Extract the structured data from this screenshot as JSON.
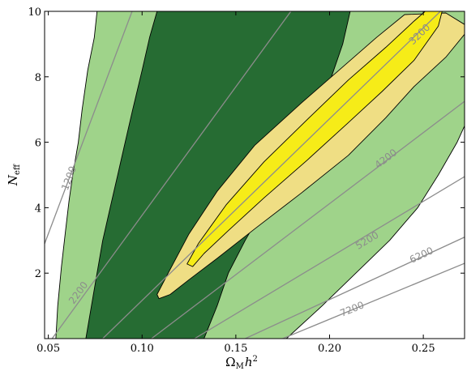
{
  "chart_data": {
    "type": "contour",
    "x_axis": {
      "label_main": "Ω",
      "label_sub": "M",
      "label_tail": "h",
      "label_sup": "2",
      "range": [
        0.048,
        0.272
      ],
      "ticks": [
        {
          "value": 0.05,
          "label": "0.05"
        },
        {
          "value": 0.1,
          "label": "0.10"
        },
        {
          "value": 0.15,
          "label": "0.15"
        },
        {
          "value": 0.2,
          "label": "0.20"
        },
        {
          "value": 0.25,
          "label": "0.25"
        }
      ]
    },
    "y_axis": {
      "label_main": "N",
      "label_sub": "eff",
      "range": [
        0,
        10
      ],
      "ticks": [
        {
          "value": 2,
          "label": "2"
        },
        {
          "value": 4,
          "label": "4"
        },
        {
          "value": 6,
          "label": "6"
        },
        {
          "value": 8,
          "label": "8"
        },
        {
          "value": 10,
          "label": "10"
        }
      ]
    },
    "colors": {
      "light_green": "#9fd38a",
      "dark_green": "#266c33",
      "light_yellow": "#efde84",
      "bright_yellow": "#f6ec18",
      "contour_line": "#8c8c8c",
      "outline": "#000000"
    },
    "regions": [
      {
        "name": "light-green-band",
        "color_key": "light_green",
        "points": [
          [
            0.076,
            10
          ],
          [
            0.0745,
            9.2
          ],
          [
            0.071,
            8.2
          ],
          [
            0.068,
            7
          ],
          [
            0.066,
            6
          ],
          [
            0.063,
            5
          ],
          [
            0.061,
            4.2
          ],
          [
            0.059,
            3.2
          ],
          [
            0.057,
            2.2
          ],
          [
            0.055,
            1
          ],
          [
            0.054,
            0
          ],
          [
            0.177,
            0
          ],
          [
            0.196,
            1
          ],
          [
            0.214,
            2
          ],
          [
            0.232,
            3
          ],
          [
            0.247,
            4
          ],
          [
            0.258,
            5
          ],
          [
            0.268,
            6
          ],
          [
            0.272,
            6.5
          ],
          [
            0.272,
            10
          ]
        ]
      },
      {
        "name": "dark-green-band",
        "color_key": "dark_green",
        "points": [
          [
            0.108,
            10
          ],
          [
            0.104,
            9.2
          ],
          [
            0.1,
            8.2
          ],
          [
            0.095,
            7
          ],
          [
            0.091,
            6
          ],
          [
            0.087,
            5
          ],
          [
            0.083,
            4
          ],
          [
            0.079,
            3
          ],
          [
            0.076,
            2
          ],
          [
            0.073,
            1
          ],
          [
            0.07,
            0
          ],
          [
            0.133,
            0
          ],
          [
            0.14,
            1
          ],
          [
            0.146,
            2
          ],
          [
            0.155,
            3
          ],
          [
            0.165,
            4
          ],
          [
            0.176,
            5
          ],
          [
            0.186,
            6
          ],
          [
            0.195,
            7
          ],
          [
            0.201,
            8
          ],
          [
            0.207,
            9
          ],
          [
            0.211,
            10
          ]
        ]
      },
      {
        "name": "outer-yellow-region",
        "color_key": "light_yellow",
        "points": [
          [
            0.108,
            1.35
          ],
          [
            0.113,
            1.9
          ],
          [
            0.125,
            3.2
          ],
          [
            0.14,
            4.5
          ],
          [
            0.16,
            5.9
          ],
          [
            0.185,
            7.2
          ],
          [
            0.205,
            8.2
          ],
          [
            0.225,
            9.2
          ],
          [
            0.24,
            9.9
          ],
          [
            0.262,
            9.95
          ],
          [
            0.272,
            9.6
          ],
          [
            0.272,
            9.3
          ],
          [
            0.262,
            8.6
          ],
          [
            0.245,
            7.7
          ],
          [
            0.23,
            6.75
          ],
          [
            0.21,
            5.6
          ],
          [
            0.185,
            4.45
          ],
          [
            0.16,
            3.35
          ],
          [
            0.14,
            2.45
          ],
          [
            0.125,
            1.8
          ],
          [
            0.115,
            1.35
          ],
          [
            0.109,
            1.22
          ]
        ]
      },
      {
        "name": "inner-yellow-region",
        "color_key": "bright_yellow",
        "points": [
          [
            0.124,
            2.28
          ],
          [
            0.13,
            2.9
          ],
          [
            0.145,
            4.1
          ],
          [
            0.165,
            5.4
          ],
          [
            0.19,
            6.8
          ],
          [
            0.21,
            7.9
          ],
          [
            0.23,
            8.9
          ],
          [
            0.245,
            9.7
          ],
          [
            0.251,
            10
          ],
          [
            0.26,
            10
          ],
          [
            0.258,
            9.55
          ],
          [
            0.245,
            8.5
          ],
          [
            0.228,
            7.55
          ],
          [
            0.21,
            6.6
          ],
          [
            0.188,
            5.45
          ],
          [
            0.165,
            4.3
          ],
          [
            0.146,
            3.3
          ],
          [
            0.133,
            2.6
          ],
          [
            0.127,
            2.2
          ]
        ]
      }
    ],
    "contour_lines": [
      {
        "label": "1200",
        "x1": 0.048,
        "y1": 2.9,
        "x2": 0.095,
        "y2": 10.05,
        "label_x": 0.061,
        "label_y": 4.9
      },
      {
        "label": "2200",
        "x1": 0.052,
        "y1": 0.0,
        "x2": 0.18,
        "y2": 10.05,
        "label_x": 0.066,
        "label_y": 1.4
      },
      {
        "label": "3200",
        "x1": 0.079,
        "y1": 0.0,
        "x2": 0.26,
        "y2": 10.05,
        "label_x": 0.248,
        "label_y": 9.3
      },
      {
        "label": "4200",
        "x1": 0.105,
        "y1": 0.0,
        "x2": 0.272,
        "y2": 7.25,
        "label_x": 0.23,
        "label_y": 5.5
      },
      {
        "label": "5200",
        "x1": 0.128,
        "y1": 0.0,
        "x2": 0.272,
        "y2": 4.95,
        "label_x": 0.22,
        "label_y": 3.0
      },
      {
        "label": "6200",
        "x1": 0.155,
        "y1": 0.0,
        "x2": 0.272,
        "y2": 3.1,
        "label_x": 0.249,
        "label_y": 2.55
      },
      {
        "label": "7200",
        "x1": 0.175,
        "y1": 0.0,
        "x2": 0.272,
        "y2": 2.3,
        "label_x": 0.212,
        "label_y": 0.9
      }
    ]
  }
}
